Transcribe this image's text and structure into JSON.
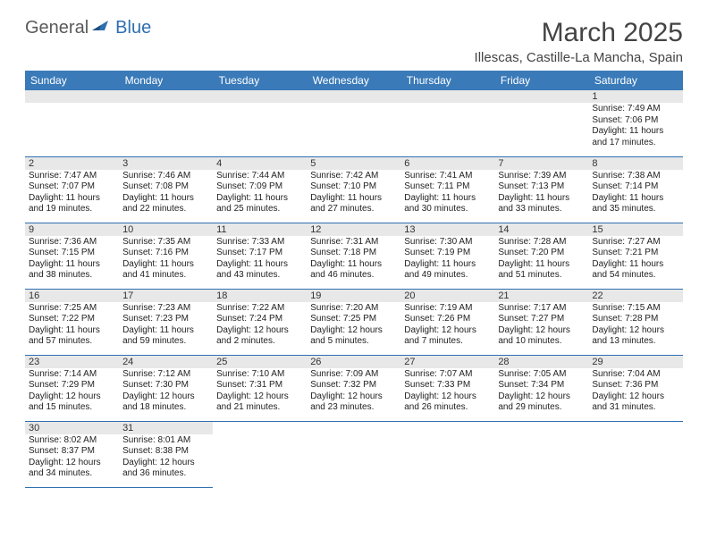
{
  "brand": {
    "part1": "General",
    "part2": "Blue",
    "icon_color": "#2f6fb0"
  },
  "title": "March 2025",
  "location": "Illescas, Castille-La Mancha, Spain",
  "header_bg": "#3a7ab8",
  "border_color": "#2f6fb0",
  "weekdays": [
    "Sunday",
    "Monday",
    "Tuesday",
    "Wednesday",
    "Thursday",
    "Friday",
    "Saturday"
  ],
  "leading_blanks": 6,
  "days": [
    {
      "n": "1",
      "sunrise": "7:49 AM",
      "sunset": "7:06 PM",
      "daylight": "11 hours and 17 minutes."
    },
    {
      "n": "2",
      "sunrise": "7:47 AM",
      "sunset": "7:07 PM",
      "daylight": "11 hours and 19 minutes."
    },
    {
      "n": "3",
      "sunrise": "7:46 AM",
      "sunset": "7:08 PM",
      "daylight": "11 hours and 22 minutes."
    },
    {
      "n": "4",
      "sunrise": "7:44 AM",
      "sunset": "7:09 PM",
      "daylight": "11 hours and 25 minutes."
    },
    {
      "n": "5",
      "sunrise": "7:42 AM",
      "sunset": "7:10 PM",
      "daylight": "11 hours and 27 minutes."
    },
    {
      "n": "6",
      "sunrise": "7:41 AM",
      "sunset": "7:11 PM",
      "daylight": "11 hours and 30 minutes."
    },
    {
      "n": "7",
      "sunrise": "7:39 AM",
      "sunset": "7:13 PM",
      "daylight": "11 hours and 33 minutes."
    },
    {
      "n": "8",
      "sunrise": "7:38 AM",
      "sunset": "7:14 PM",
      "daylight": "11 hours and 35 minutes."
    },
    {
      "n": "9",
      "sunrise": "7:36 AM",
      "sunset": "7:15 PM",
      "daylight": "11 hours and 38 minutes."
    },
    {
      "n": "10",
      "sunrise": "7:35 AM",
      "sunset": "7:16 PM",
      "daylight": "11 hours and 41 minutes."
    },
    {
      "n": "11",
      "sunrise": "7:33 AM",
      "sunset": "7:17 PM",
      "daylight": "11 hours and 43 minutes."
    },
    {
      "n": "12",
      "sunrise": "7:31 AM",
      "sunset": "7:18 PM",
      "daylight": "11 hours and 46 minutes."
    },
    {
      "n": "13",
      "sunrise": "7:30 AM",
      "sunset": "7:19 PM",
      "daylight": "11 hours and 49 minutes."
    },
    {
      "n": "14",
      "sunrise": "7:28 AM",
      "sunset": "7:20 PM",
      "daylight": "11 hours and 51 minutes."
    },
    {
      "n": "15",
      "sunrise": "7:27 AM",
      "sunset": "7:21 PM",
      "daylight": "11 hours and 54 minutes."
    },
    {
      "n": "16",
      "sunrise": "7:25 AM",
      "sunset": "7:22 PM",
      "daylight": "11 hours and 57 minutes."
    },
    {
      "n": "17",
      "sunrise": "7:23 AM",
      "sunset": "7:23 PM",
      "daylight": "11 hours and 59 minutes."
    },
    {
      "n": "18",
      "sunrise": "7:22 AM",
      "sunset": "7:24 PM",
      "daylight": "12 hours and 2 minutes."
    },
    {
      "n": "19",
      "sunrise": "7:20 AM",
      "sunset": "7:25 PM",
      "daylight": "12 hours and 5 minutes."
    },
    {
      "n": "20",
      "sunrise": "7:19 AM",
      "sunset": "7:26 PM",
      "daylight": "12 hours and 7 minutes."
    },
    {
      "n": "21",
      "sunrise": "7:17 AM",
      "sunset": "7:27 PM",
      "daylight": "12 hours and 10 minutes."
    },
    {
      "n": "22",
      "sunrise": "7:15 AM",
      "sunset": "7:28 PM",
      "daylight": "12 hours and 13 minutes."
    },
    {
      "n": "23",
      "sunrise": "7:14 AM",
      "sunset": "7:29 PM",
      "daylight": "12 hours and 15 minutes."
    },
    {
      "n": "24",
      "sunrise": "7:12 AM",
      "sunset": "7:30 PM",
      "daylight": "12 hours and 18 minutes."
    },
    {
      "n": "25",
      "sunrise": "7:10 AM",
      "sunset": "7:31 PM",
      "daylight": "12 hours and 21 minutes."
    },
    {
      "n": "26",
      "sunrise": "7:09 AM",
      "sunset": "7:32 PM",
      "daylight": "12 hours and 23 minutes."
    },
    {
      "n": "27",
      "sunrise": "7:07 AM",
      "sunset": "7:33 PM",
      "daylight": "12 hours and 26 minutes."
    },
    {
      "n": "28",
      "sunrise": "7:05 AM",
      "sunset": "7:34 PM",
      "daylight": "12 hours and 29 minutes."
    },
    {
      "n": "29",
      "sunrise": "7:04 AM",
      "sunset": "7:36 PM",
      "daylight": "12 hours and 31 minutes."
    },
    {
      "n": "30",
      "sunrise": "8:02 AM",
      "sunset": "8:37 PM",
      "daylight": "12 hours and 34 minutes."
    },
    {
      "n": "31",
      "sunrise": "8:01 AM",
      "sunset": "8:38 PM",
      "daylight": "12 hours and 36 minutes."
    }
  ],
  "labels": {
    "sunrise": "Sunrise:",
    "sunset": "Sunset:",
    "daylight": "Daylight:"
  }
}
